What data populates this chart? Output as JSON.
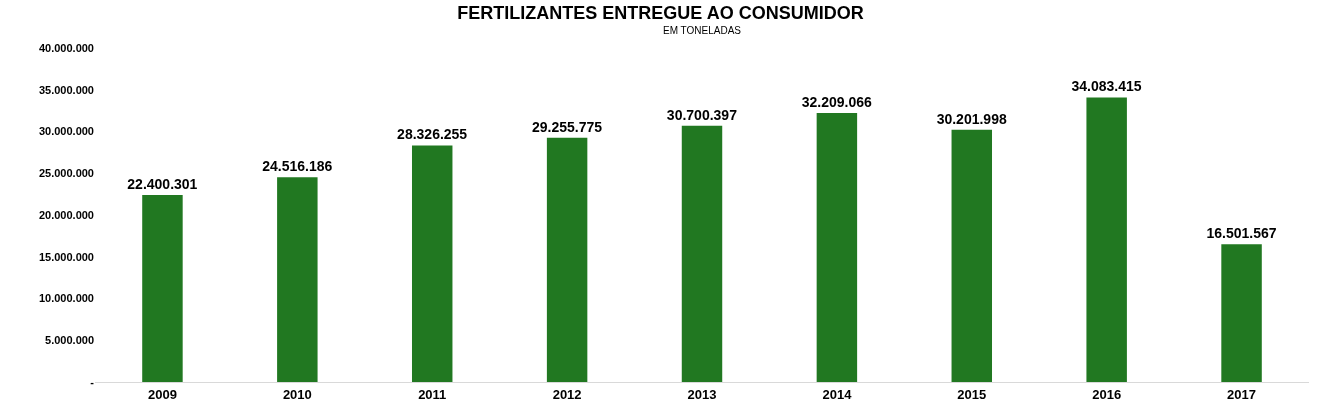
{
  "chart_data": {
    "type": "bar",
    "title": "FERTILIZANTES ENTREGUE AO CONSUMIDOR",
    "subtitle": "EM TONELADAS",
    "categories": [
      "2009",
      "2010",
      "2011",
      "2012",
      "2013",
      "2014",
      "2015",
      "2016",
      "2017"
    ],
    "values": [
      22400301,
      24516186,
      28326255,
      29255775,
      30700397,
      32209066,
      30201998,
      34083415,
      16501567
    ],
    "value_labels": [
      "22.400.301",
      "24.516.186",
      "28.326.255",
      "29.255.775",
      "30.700.397",
      "32.209.066",
      "30.201.998",
      "34.083.415",
      "16.501.567"
    ],
    "color": "#217821",
    "ylim": [
      0,
      40000000
    ],
    "yticks": [
      {
        "value": 0,
        "label": "-"
      },
      {
        "value": 5000000,
        "label": "5.000.000"
      },
      {
        "value": 10000000,
        "label": "10.000.000"
      },
      {
        "value": 15000000,
        "label": "15.000.000"
      },
      {
        "value": 20000000,
        "label": "20.000.000"
      },
      {
        "value": 25000000,
        "label": "25.000.000"
      },
      {
        "value": 30000000,
        "label": "30.000.000"
      },
      {
        "value": 35000000,
        "label": "35.000.000"
      },
      {
        "value": 40000000,
        "label": "40.000.000"
      }
    ],
    "grid": false
  }
}
